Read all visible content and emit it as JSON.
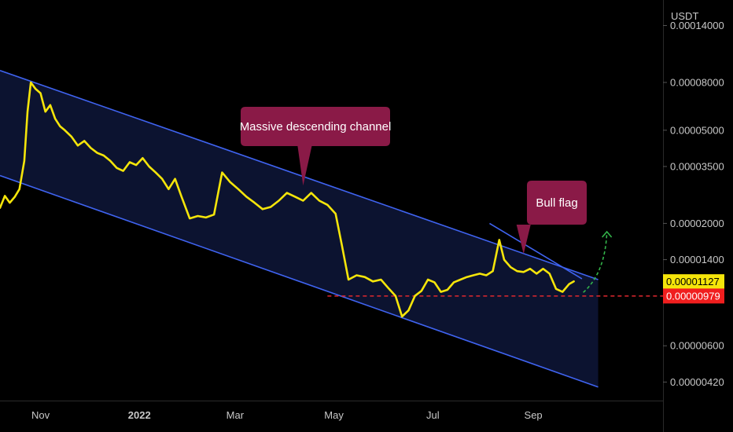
{
  "chart_data": {
    "type": "line",
    "title": "",
    "currency": "USDT",
    "y_scale": "log",
    "ylim": [
      3.5e-06,
      0.00018
    ],
    "y_ticks": [
      "0.00014000",
      "0.00008000",
      "0.00005000",
      "0.00003500",
      "0.00002000",
      "0.00001400",
      "0.00000600",
      "0.00000420"
    ],
    "x_ticks": [
      {
        "label": "Nov",
        "date": "2021-11-01",
        "bold": false
      },
      {
        "label": "2022",
        "date": "2022-01-01",
        "bold": true
      },
      {
        "label": "Mar",
        "date": "2022-03-01",
        "bold": false
      },
      {
        "label": "May",
        "date": "2022-05-01",
        "bold": false
      },
      {
        "label": "Jul",
        "date": "2022-07-01",
        "bold": false
      },
      {
        "label": "Sep",
        "date": "2022-09-01",
        "bold": false
      }
    ],
    "xlim": [
      "2021-10-07",
      "2022-11-20"
    ],
    "series": [
      {
        "color": "#f5e50a",
        "points": [
          [
            "2021-10-07",
            2.33e-05
          ],
          [
            "2021-10-10",
            2.62e-05
          ],
          [
            "2021-10-13",
            2.45e-05
          ],
          [
            "2021-10-16",
            2.59e-05
          ],
          [
            "2021-10-19",
            2.8e-05
          ],
          [
            "2021-10-22",
            3.7e-05
          ],
          [
            "2021-10-24",
            6e-05
          ],
          [
            "2021-10-26",
            8e-05
          ],
          [
            "2021-10-29",
            7.5e-05
          ],
          [
            "2021-11-01",
            7.2e-05
          ],
          [
            "2021-11-04",
            6e-05
          ],
          [
            "2021-11-07",
            6.4e-05
          ],
          [
            "2021-11-10",
            5.6e-05
          ],
          [
            "2021-11-13",
            5.2e-05
          ],
          [
            "2021-11-16",
            5e-05
          ],
          [
            "2021-11-20",
            4.7e-05
          ],
          [
            "2021-11-24",
            4.3e-05
          ],
          [
            "2021-11-28",
            4.5e-05
          ],
          [
            "2021-12-02",
            4.2e-05
          ],
          [
            "2021-12-06",
            4e-05
          ],
          [
            "2021-12-10",
            3.9e-05
          ],
          [
            "2021-12-14",
            3.7e-05
          ],
          [
            "2021-12-18",
            3.45e-05
          ],
          [
            "2021-12-22",
            3.35e-05
          ],
          [
            "2021-12-26",
            3.65e-05
          ],
          [
            "2021-12-30",
            3.55e-05
          ],
          [
            "2022-01-03",
            3.8e-05
          ],
          [
            "2022-01-07",
            3.5e-05
          ],
          [
            "2022-01-11",
            3.3e-05
          ],
          [
            "2022-01-15",
            3.1e-05
          ],
          [
            "2022-01-19",
            2.8e-05
          ],
          [
            "2022-01-23",
            3.1e-05
          ],
          [
            "2022-01-27",
            2.6e-05
          ],
          [
            "2022-02-01",
            2.1e-05
          ],
          [
            "2022-02-06",
            2.15e-05
          ],
          [
            "2022-02-11",
            2.12e-05
          ],
          [
            "2022-02-16",
            2.18e-05
          ],
          [
            "2022-02-21",
            3.3e-05
          ],
          [
            "2022-02-26",
            3e-05
          ],
          [
            "2022-03-03",
            2.8e-05
          ],
          [
            "2022-03-08",
            2.6e-05
          ],
          [
            "2022-03-13",
            2.45e-05
          ],
          [
            "2022-03-18",
            2.3e-05
          ],
          [
            "2022-03-23",
            2.35e-05
          ],
          [
            "2022-03-28",
            2.5e-05
          ],
          [
            "2022-04-02",
            2.7e-05
          ],
          [
            "2022-04-07",
            2.6e-05
          ],
          [
            "2022-04-12",
            2.5e-05
          ],
          [
            "2022-04-17",
            2.7e-05
          ],
          [
            "2022-04-22",
            2.5e-05
          ],
          [
            "2022-04-27",
            2.4e-05
          ],
          [
            "2022-05-02",
            2.2e-05
          ],
          [
            "2022-05-06",
            1.6e-05
          ],
          [
            "2022-05-10",
            1.15e-05
          ],
          [
            "2022-05-15",
            1.2e-05
          ],
          [
            "2022-05-20",
            1.18e-05
          ],
          [
            "2022-05-25",
            1.13e-05
          ],
          [
            "2022-05-30",
            1.15e-05
          ],
          [
            "2022-06-04",
            1.05e-05
          ],
          [
            "2022-06-08",
            9.8e-06
          ],
          [
            "2022-06-12",
            8e-06
          ],
          [
            "2022-06-16",
            8.5e-06
          ],
          [
            "2022-06-20",
            9.8e-06
          ],
          [
            "2022-06-24",
            1.03e-05
          ],
          [
            "2022-06-28",
            1.15e-05
          ],
          [
            "2022-07-02",
            1.12e-05
          ],
          [
            "2022-07-06",
            1.02e-05
          ],
          [
            "2022-07-10",
            1.04e-05
          ],
          [
            "2022-07-14",
            1.12e-05
          ],
          [
            "2022-07-18",
            1.15e-05
          ],
          [
            "2022-07-22",
            1.18e-05
          ],
          [
            "2022-07-26",
            1.2e-05
          ],
          [
            "2022-07-30",
            1.22e-05
          ],
          [
            "2022-08-03",
            1.2e-05
          ],
          [
            "2022-08-07",
            1.25e-05
          ],
          [
            "2022-08-11",
            1.7e-05
          ],
          [
            "2022-08-14",
            1.4e-05
          ],
          [
            "2022-08-18",
            1.3e-05
          ],
          [
            "2022-08-22",
            1.25e-05
          ],
          [
            "2022-08-26",
            1.24e-05
          ],
          [
            "2022-08-30",
            1.28e-05
          ],
          [
            "2022-09-03",
            1.22e-05
          ],
          [
            "2022-09-07",
            1.28e-05
          ],
          [
            "2022-09-11",
            1.22e-05
          ],
          [
            "2022-09-15",
            1.05e-05
          ],
          [
            "2022-09-19",
            1.02e-05
          ],
          [
            "2022-09-23",
            1.1e-05
          ],
          [
            "2022-09-26",
            1.13e-05
          ]
        ]
      }
    ],
    "channel": {
      "upper": [
        [
          "2021-10-07",
          9e-05
        ],
        [
          "2022-10-11",
          1.15e-05
        ]
      ],
      "lower": [
        [
          "2021-10-07",
          3.2e-05
        ],
        [
          "2022-10-11",
          4e-06
        ]
      ],
      "fill": "#0c1330",
      "line_color": "#3f63f0"
    },
    "flag_line": [
      [
        "2022-08-05",
        2e-05
      ],
      [
        "2022-10-01",
        1.16e-05
      ]
    ],
    "support_level": {
      "value": 9.79e-06,
      "from": "2022-04-27",
      "color": "#e0282f"
    },
    "breakout_arrow_color": "#33b44a",
    "current_price": {
      "label": "0.00001127",
      "value": 1.127e-05,
      "bg": "#f5e50a",
      "fg": "#000000"
    },
    "level_price": {
      "label": "0.00000979",
      "value": 9.79e-06,
      "bg": "#f01e1e",
      "fg": "#ffffff"
    },
    "annotations": [
      {
        "text": "Massive descending channel",
        "bg": "#8a1a47",
        "target": [
          "2022-04-12",
          2.9e-05
        ]
      },
      {
        "text": "Bull flag",
        "bg": "#8a1a47",
        "target": [
          "2022-08-26",
          1.48e-05
        ]
      }
    ]
  }
}
